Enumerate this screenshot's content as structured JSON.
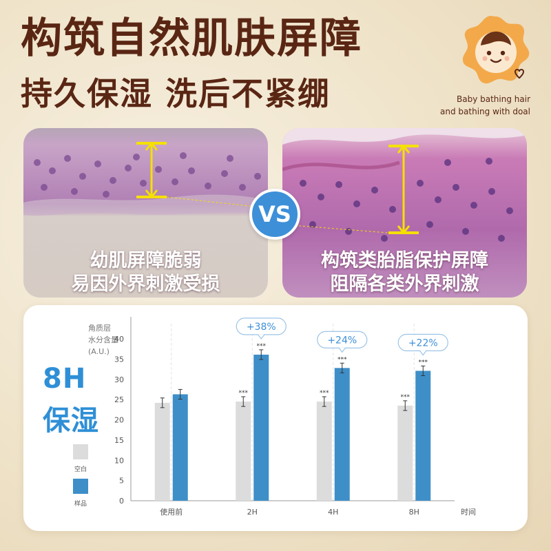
{
  "headline": {
    "line1": "构筑自然肌肤屏障",
    "line2": "持久保湿 洗后不紧绷"
  },
  "brand": {
    "line1": "Baby bathing hair",
    "line2": "and bathing with doal",
    "logo_icon": "baby-face-logo-icon"
  },
  "comparison": {
    "vs_label": "VS",
    "left_caption_1": "幼肌屏障脆弱",
    "left_caption_2": "易因外界刺激受损",
    "right_caption_1": "构筑类胎脂保护屏障",
    "right_caption_2": "阻隔各类外界刺激"
  },
  "side_title": {
    "line1": "8H",
    "line2": "保湿"
  },
  "legend": {
    "blank_label": "空白",
    "sample_label": "样品"
  },
  "colors": {
    "headline": "#5a2614",
    "accent_blue": "#3d8fd8",
    "sample_bar": "#3e8fc8",
    "blank_bar": "#dcdcdc",
    "callout_text": "#3d8fd8"
  },
  "chart_data": {
    "type": "bar",
    "ylabel_lines": [
      "角质层",
      "水分含量",
      "(A.U.)"
    ],
    "xlabel": "时间",
    "categories": [
      "使用前",
      "2H",
      "4H",
      "8H"
    ],
    "ylim": [
      0,
      40
    ],
    "yticks": [
      0,
      5,
      10,
      15,
      20,
      25,
      30,
      35,
      40
    ],
    "grid": "vertical dashed",
    "series": [
      {
        "name": "空白",
        "values": [
          24.2,
          24.5,
          24.5,
          23.5
        ],
        "errors": [
          1.2,
          1.2,
          1.2,
          1.2
        ],
        "significance": [
          "",
          "***",
          "***",
          "***"
        ]
      },
      {
        "name": "样品",
        "values": [
          26.3,
          36.1,
          32.8,
          32.1
        ],
        "errors": [
          1.2,
          1.2,
          1.2,
          1.2
        ],
        "significance": [
          "",
          "***",
          "***",
          "***"
        ]
      }
    ],
    "annotations": [
      "",
      "+38%",
      "+24%",
      "+22%"
    ]
  }
}
